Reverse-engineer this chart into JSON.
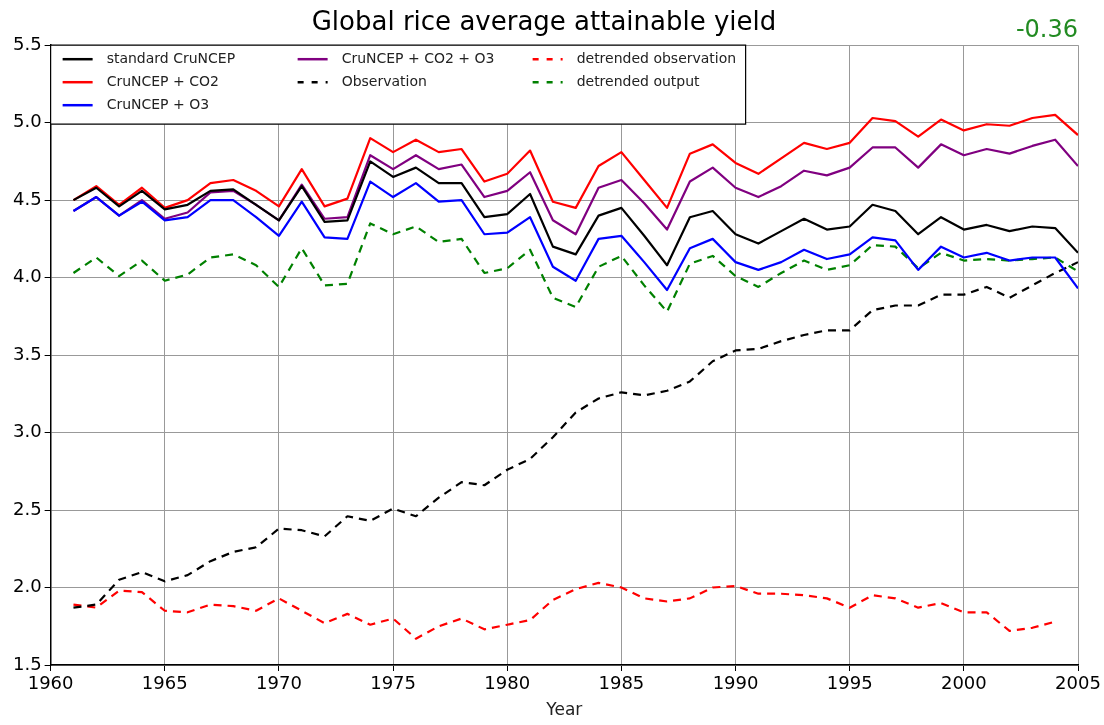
{
  "chart_data": {
    "type": "line",
    "title": "Global rice average attainable yield",
    "xlabel": "Year",
    "annotations": [
      "-0.36"
    ],
    "x": [
      1961,
      1962,
      1963,
      1964,
      1965,
      1966,
      1967,
      1968,
      1969,
      1970,
      1971,
      1972,
      1973,
      1974,
      1975,
      1976,
      1977,
      1978,
      1979,
      1980,
      1981,
      1982,
      1983,
      1984,
      1985,
      1986,
      1987,
      1988,
      1989,
      1990,
      1991,
      1992,
      1993,
      1994,
      1995,
      1996,
      1997,
      1998,
      1999,
      2000,
      2001,
      2002,
      2003,
      2004,
      2005
    ],
    "xlim": [
      1960,
      2005
    ],
    "xticks": [
      1960,
      1965,
      1970,
      1975,
      1980,
      1985,
      1990,
      1995,
      2000,
      2005
    ],
    "ylim": [
      1.5,
      5.5
    ],
    "yticks": [
      1.5,
      {
        "value": 2,
        "label": "2.0"
      },
      2.5,
      {
        "value": 3,
        "label": "3.0"
      },
      3.5,
      {
        "value": 4,
        "label": "4.0"
      },
      4.5,
      {
        "value": 5,
        "label": "5.0"
      },
      5.5
    ],
    "grid": true,
    "legend": "top left",
    "marker": "none",
    "series": [
      {
        "name": "standard CruNCEP",
        "color": "#000000",
        "line_style": "solid",
        "values": [
          4.5,
          4.58,
          4.46,
          4.56,
          4.44,
          4.47,
          4.56,
          4.57,
          4.47,
          4.37,
          4.59,
          4.36,
          4.37,
          4.75,
          4.65,
          4.71,
          4.61,
          4.61,
          4.39,
          4.41,
          4.54,
          4.2,
          4.15,
          4.4,
          4.45,
          4.27,
          4.08,
          4.39,
          4.43,
          4.28,
          4.22,
          4.3,
          4.38,
          4.31,
          4.33,
          4.47,
          4.43,
          4.28,
          4.39,
          4.31,
          4.34,
          4.3,
          4.33,
          4.32,
          4.16
        ]
      },
      {
        "name": "CruNCEP + CO2",
        "color": "#ff0000",
        "line_style": "solid",
        "values": [
          4.5,
          4.59,
          4.47,
          4.58,
          4.45,
          4.5,
          4.61,
          4.63,
          4.56,
          4.46,
          4.7,
          4.46,
          4.51,
          4.9,
          4.81,
          4.89,
          4.81,
          4.83,
          4.62,
          4.67,
          4.82,
          4.49,
          4.45,
          4.72,
          4.81,
          4.63,
          4.45,
          4.8,
          4.86,
          4.74,
          4.67,
          4.77,
          4.87,
          4.83,
          4.87,
          5.03,
          5.01,
          4.91,
          5.02,
          4.95,
          4.99,
          4.98,
          5.03,
          5.05,
          4.92
        ]
      },
      {
        "name": "CruNCEP + O3",
        "color": "#0000ff",
        "line_style": "solid",
        "values": [
          4.43,
          4.52,
          4.4,
          4.49,
          4.37,
          4.39,
          4.5,
          4.5,
          4.39,
          4.27,
          4.49,
          4.26,
          4.25,
          4.62,
          4.52,
          4.61,
          4.49,
          4.5,
          4.28,
          4.29,
          4.39,
          4.07,
          3.98,
          4.25,
          4.27,
          4.1,
          3.92,
          4.19,
          4.25,
          4.1,
          4.05,
          4.1,
          4.18,
          4.12,
          4.15,
          4.26,
          4.24,
          4.05,
          4.2,
          4.13,
          4.16,
          4.11,
          4.13,
          4.13,
          3.93
        ]
      },
      {
        "name": "CruNCEP + CO2 + O3",
        "color": "#800080",
        "line_style": "solid",
        "values": [
          4.43,
          4.52,
          4.4,
          4.5,
          4.38,
          4.42,
          4.55,
          4.56,
          4.47,
          4.37,
          4.6,
          4.38,
          4.39,
          4.79,
          4.7,
          4.79,
          4.7,
          4.73,
          4.52,
          4.56,
          4.68,
          4.37,
          4.28,
          4.58,
          4.63,
          4.48,
          4.31,
          4.62,
          4.71,
          4.58,
          4.52,
          4.59,
          4.69,
          4.66,
          4.71,
          4.84,
          4.84,
          4.71,
          4.86,
          4.79,
          4.83,
          4.8,
          4.85,
          4.89,
          4.72
        ]
      },
      {
        "name": "Observation",
        "color": "#000000",
        "line_style": "dashed",
        "values": [
          1.87,
          1.89,
          2.05,
          2.1,
          2.04,
          2.08,
          2.17,
          2.23,
          2.26,
          2.38,
          2.37,
          2.33,
          2.46,
          2.43,
          2.51,
          2.46,
          2.58,
          2.68,
          2.66,
          2.76,
          2.83,
          2.97,
          3.13,
          3.22,
          3.26,
          3.24,
          3.27,
          3.33,
          3.46,
          3.53,
          3.54,
          3.59,
          3.63,
          3.66,
          3.66,
          3.79,
          3.82,
          3.82,
          3.89,
          3.89,
          3.94,
          3.87,
          3.95,
          4.03,
          4.1
        ]
      },
      {
        "name": "detrended observation",
        "color": "#ff0000",
        "line_style": "dashed",
        "values": [
          1.89,
          1.87,
          1.98,
          1.97,
          1.85,
          1.84,
          1.89,
          1.88,
          1.85,
          1.93,
          1.85,
          1.77,
          1.83,
          1.76,
          1.8,
          1.67,
          1.75,
          1.8,
          1.73,
          1.76,
          1.79,
          1.92,
          1.99,
          2.03,
          2.0,
          1.93,
          1.91,
          1.93,
          2.0,
          2.01,
          1.96,
          1.96,
          1.95,
          1.93,
          1.87,
          1.95,
          1.93,
          1.87,
          1.9,
          1.84,
          1.84,
          1.72,
          1.74,
          1.78,
          null
        ]
      },
      {
        "name": "detrended output",
        "color": "#008000",
        "line_style": "dashed",
        "values": [
          4.03,
          4.13,
          4.01,
          4.11,
          3.98,
          4.02,
          4.13,
          4.15,
          4.08,
          3.94,
          4.19,
          3.95,
          3.96,
          4.35,
          4.28,
          4.33,
          4.23,
          4.25,
          4.03,
          4.06,
          4.18,
          3.87,
          3.81,
          4.07,
          4.14,
          3.95,
          3.78,
          4.09,
          4.14,
          4.01,
          3.94,
          4.03,
          4.11,
          4.05,
          4.08,
          4.21,
          4.2,
          4.06,
          4.16,
          4.11,
          4.12,
          4.11,
          4.12,
          4.13,
          4.04
        ]
      }
    ]
  }
}
